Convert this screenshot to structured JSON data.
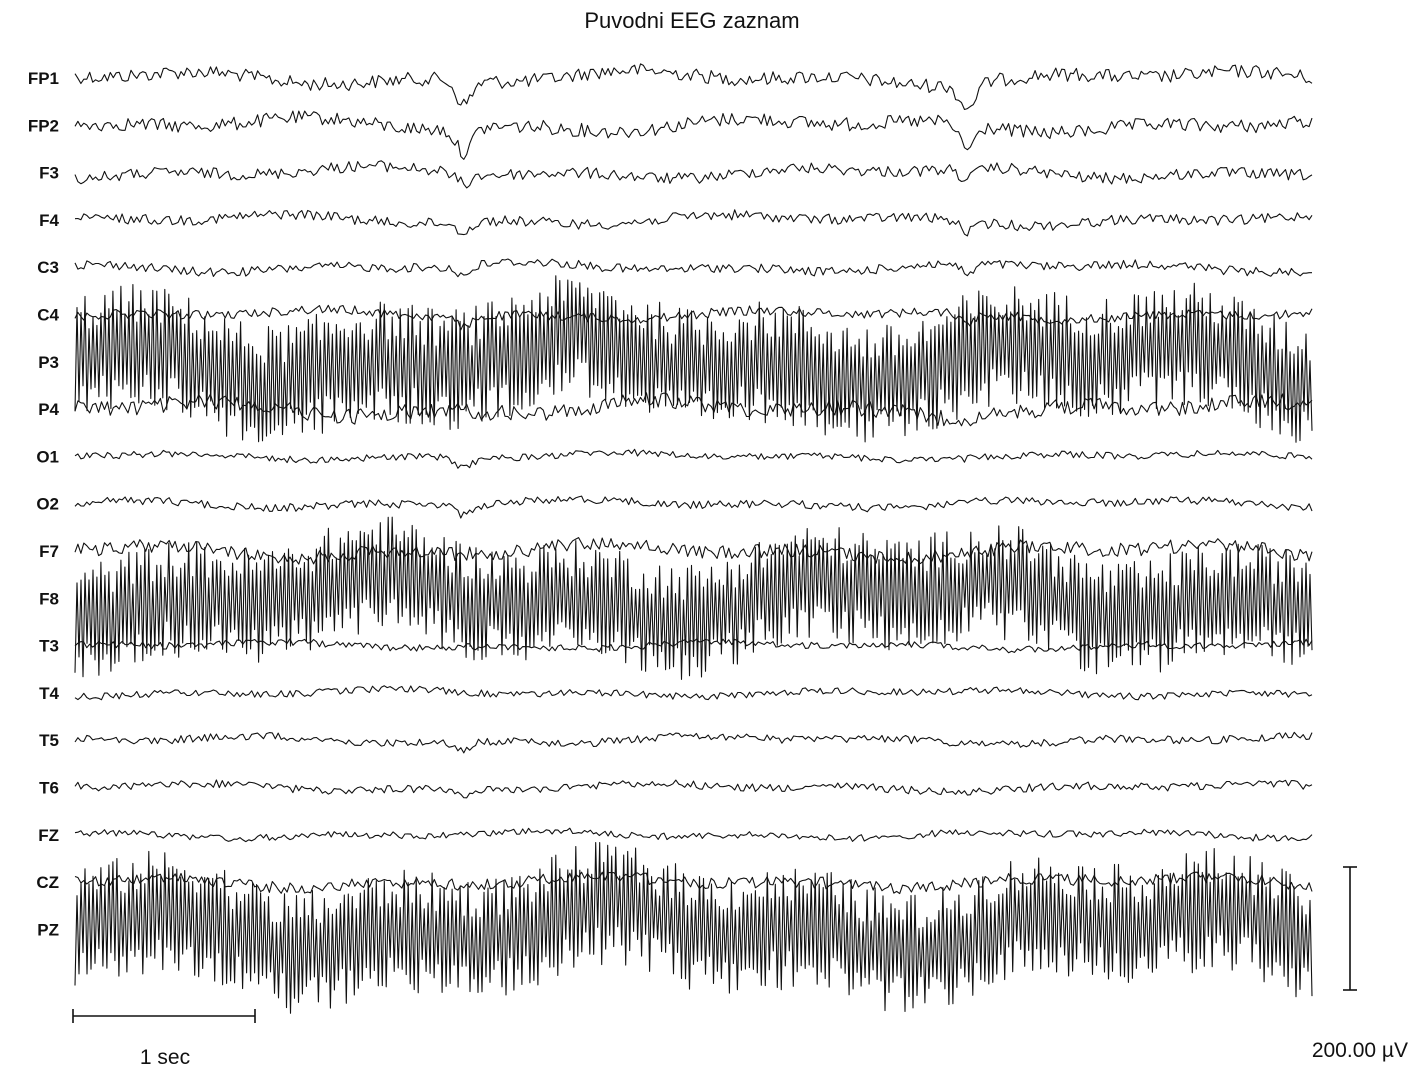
{
  "chart_data": {
    "type": "line",
    "title": "Puvodni EEG zaznam",
    "channels": [
      "FP1",
      "FP2",
      "F3",
      "F4",
      "C3",
      "C4",
      "P3",
      "P4",
      "O1",
      "O2",
      "F7",
      "F8",
      "T3",
      "T4",
      "T5",
      "T6",
      "FZ",
      "CZ",
      "PZ"
    ],
    "duration_sec": 7,
    "time_scale": {
      "label": "1 sec",
      "seconds": 1
    },
    "amplitude_scale": {
      "label": "200.00 µV",
      "microvolts": 200
    },
    "events": [
      {
        "t_sec": 2.2,
        "type": "deflection",
        "channels": [
          "FP1",
          "FP2",
          "F3",
          "F4",
          "C3",
          "C4",
          "O1",
          "O2",
          "T5",
          "T6"
        ]
      },
      {
        "t_sec": 5.05,
        "type": "deflection",
        "channels": [
          "FP1",
          "FP2",
          "F3",
          "F4",
          "C3",
          "C4"
        ]
      }
    ],
    "activity": [
      {
        "channel": "FP1",
        "peak_to_peak_uv": 60
      },
      {
        "channel": "FP2",
        "peak_to_peak_uv": 60
      },
      {
        "channel": "F3",
        "peak_to_peak_uv": 50
      },
      {
        "channel": "F4",
        "peak_to_peak_uv": 45
      },
      {
        "channel": "C3",
        "peak_to_peak_uv": 40
      },
      {
        "channel": "C4",
        "peak_to_peak_uv": 40
      },
      {
        "channel": "P3",
        "peak_to_peak_uv": 200
      },
      {
        "channel": "P4",
        "peak_to_peak_uv": 70
      },
      {
        "channel": "O1",
        "peak_to_peak_uv": 30
      },
      {
        "channel": "O2",
        "peak_to_peak_uv": 35
      },
      {
        "channel": "F7",
        "peak_to_peak_uv": 60
      },
      {
        "channel": "F8",
        "peak_to_peak_uv": 190
      },
      {
        "channel": "T3",
        "peak_to_peak_uv": 30
      },
      {
        "channel": "T4",
        "peak_to_peak_uv": 30
      },
      {
        "channel": "T5",
        "peak_to_peak_uv": 35
      },
      {
        "channel": "T6",
        "peak_to_peak_uv": 35
      },
      {
        "channel": "FZ",
        "peak_to_peak_uv": 30
      },
      {
        "channel": "CZ",
        "peak_to_peak_uv": 50
      },
      {
        "channel": "PZ",
        "peak_to_peak_uv": 200
      }
    ]
  }
}
